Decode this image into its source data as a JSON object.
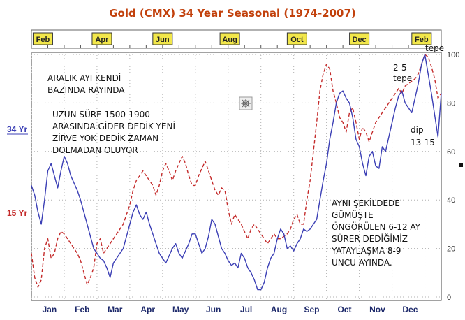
{
  "chart_data": {
    "type": "line",
    "title": "Gold (CMX) 34 Year Seasonal (1974-2007)",
    "top_months": [
      "Feb",
      "Apr",
      "Jun",
      "Aug",
      "Oct",
      "Dec",
      "Feb"
    ],
    "bottom_months": [
      "Jan",
      "Feb",
      "Mar",
      "Apr",
      "May",
      "Jun",
      "Jul",
      "Aug",
      "Sep",
      "Oct",
      "Nov",
      "Dec"
    ],
    "yticks": [
      "0",
      "20",
      "40",
      "60",
      "80",
      "100"
    ],
    "ylim": [
      0,
      100
    ],
    "xlim": [
      0,
      12.5
    ],
    "grid": true,
    "series": [
      {
        "name": "34 Yr",
        "color": "#3b3fb5",
        "style": "solid",
        "x": [
          0.0,
          0.1,
          0.2,
          0.3,
          0.4,
          0.5,
          0.6,
          0.7,
          0.8,
          0.9,
          1.0,
          1.1,
          1.2,
          1.3,
          1.4,
          1.5,
          1.6,
          1.7,
          1.8,
          1.9,
          2.0,
          2.1,
          2.2,
          2.3,
          2.4,
          2.5,
          2.6,
          2.7,
          2.8,
          2.9,
          3.0,
          3.1,
          3.2,
          3.3,
          3.4,
          3.5,
          3.6,
          3.7,
          3.8,
          3.9,
          4.0,
          4.1,
          4.2,
          4.3,
          4.4,
          4.5,
          4.6,
          4.7,
          4.8,
          4.9,
          5.0,
          5.1,
          5.2,
          5.3,
          5.4,
          5.5,
          5.6,
          5.7,
          5.8,
          5.9,
          6.0,
          6.1,
          6.2,
          6.3,
          6.4,
          6.5,
          6.6,
          6.7,
          6.8,
          6.9,
          7.0,
          7.1,
          7.2,
          7.3,
          7.4,
          7.5,
          7.6,
          7.7,
          7.8,
          7.9,
          8.0,
          8.1,
          8.2,
          8.3,
          8.4,
          8.5,
          8.6,
          8.7,
          8.8,
          8.9,
          9.0,
          9.1,
          9.2,
          9.3,
          9.4,
          9.5,
          9.6,
          9.7,
          9.8,
          9.9,
          10.0,
          10.1,
          10.2,
          10.3,
          10.4,
          10.5,
          10.6,
          10.7,
          10.8,
          10.9,
          11.0,
          11.1,
          11.2,
          11.3,
          11.4,
          11.5,
          11.6,
          11.7,
          11.8,
          11.9,
          12.0,
          12.1,
          12.2,
          12.3,
          12.4,
          12.5
        ],
        "values": [
          46,
          42,
          35,
          30,
          40,
          52,
          55,
          50,
          45,
          52,
          58,
          55,
          50,
          47,
          44,
          40,
          35,
          30,
          25,
          20,
          18,
          16,
          15,
          12,
          8,
          14,
          16,
          18,
          20,
          25,
          30,
          35,
          38,
          34,
          32,
          35,
          30,
          26,
          22,
          18,
          16,
          14,
          17,
          20,
          22,
          18,
          16,
          19,
          22,
          26,
          26,
          22,
          18,
          20,
          25,
          32,
          30,
          25,
          20,
          18,
          15,
          13,
          14,
          12,
          18,
          16,
          12,
          10,
          7,
          3,
          3,
          6,
          12,
          16,
          18,
          24,
          28,
          26,
          20,
          21,
          19,
          22,
          24,
          28,
          27,
          28,
          30,
          32,
          40,
          48,
          55,
          65,
          72,
          80,
          84,
          85,
          82,
          80,
          74,
          65,
          62,
          55,
          50,
          58,
          60,
          54,
          53,
          62,
          60,
          66,
          72,
          78,
          83,
          85,
          80,
          78,
          76,
          82,
          88,
          96,
          100,
          92,
          84,
          75,
          66,
          84
        ]
      },
      {
        "name": "15 Yr",
        "color": "#c42b2b",
        "style": "dashed",
        "x": [
          0.0,
          0.1,
          0.2,
          0.3,
          0.4,
          0.5,
          0.6,
          0.7,
          0.8,
          0.9,
          1.0,
          1.1,
          1.2,
          1.3,
          1.4,
          1.5,
          1.6,
          1.7,
          1.8,
          1.9,
          2.0,
          2.1,
          2.2,
          2.3,
          2.4,
          2.5,
          2.6,
          2.7,
          2.8,
          2.9,
          3.0,
          3.1,
          3.2,
          3.3,
          3.4,
          3.5,
          3.6,
          3.7,
          3.8,
          3.9,
          4.0,
          4.1,
          4.2,
          4.3,
          4.4,
          4.5,
          4.6,
          4.7,
          4.8,
          4.9,
          5.0,
          5.1,
          5.2,
          5.3,
          5.4,
          5.5,
          5.6,
          5.7,
          5.8,
          5.9,
          6.0,
          6.1,
          6.2,
          6.3,
          6.4,
          6.5,
          6.6,
          6.7,
          6.8,
          6.9,
          7.0,
          7.1,
          7.2,
          7.3,
          7.4,
          7.5,
          7.6,
          7.7,
          7.8,
          7.9,
          8.0,
          8.1,
          8.2,
          8.3,
          8.4,
          8.5,
          8.6,
          8.7,
          8.8,
          8.9,
          9.0,
          9.1,
          9.2,
          9.3,
          9.4,
          9.5,
          9.6,
          9.7,
          9.8,
          9.9,
          10.0,
          10.1,
          10.2,
          10.3,
          10.4,
          10.5,
          10.6,
          10.7,
          10.8,
          10.9,
          11.0,
          11.1,
          11.2,
          11.3,
          11.4,
          11.5,
          11.6,
          11.7,
          11.8,
          11.9,
          12.0,
          12.1,
          12.2,
          12.3,
          12.4,
          12.5
        ],
        "values": [
          18,
          8,
          4,
          7,
          20,
          24,
          16,
          18,
          24,
          27,
          26,
          24,
          22,
          20,
          18,
          15,
          10,
          5,
          8,
          12,
          22,
          24,
          18,
          20,
          22,
          24,
          26,
          28,
          30,
          34,
          38,
          44,
          48,
          50,
          52,
          50,
          48,
          46,
          42,
          46,
          52,
          55,
          52,
          48,
          52,
          55,
          58,
          55,
          50,
          46,
          46,
          50,
          53,
          56,
          52,
          48,
          44,
          42,
          45,
          44,
          36,
          30,
          34,
          32,
          30,
          27,
          24,
          28,
          30,
          28,
          26,
          24,
          22,
          24,
          26,
          24,
          24,
          25,
          26,
          28,
          32,
          34,
          30,
          30,
          40,
          48,
          60,
          72,
          85,
          92,
          96,
          94,
          85,
          80,
          74,
          72,
          68,
          76,
          78,
          72,
          65,
          70,
          68,
          64,
          68,
          72,
          74,
          76,
          78,
          80,
          82,
          84,
          86,
          84,
          87,
          88,
          89,
          90,
          92,
          96,
          100,
          99,
          95,
          90,
          82,
          84
        ]
      }
    ],
    "annotations": [
      {
        "id": "aralik",
        "lines": [
          "ARALIK AYI KENDİ",
          "BAZINDA RAYINDA"
        ]
      },
      {
        "id": "uzun",
        "lines": [
          "UZUN SÜRE 1500-1900",
          "ARASINDA GİDER DEDİK YENİ",
          "ZİRVE YOK DEDİK ZAMAN",
          "DOLMADAN OLUYOR"
        ]
      },
      {
        "id": "ayni",
        "lines": [
          "AYNI ŞEKİLDEDE",
          "GÜMÜŞTE",
          "ÖNGÖRÜLEN 6-12 AY",
          "SÜRER DEDİĞİMİZ",
          "YATAYLAŞMA 8-9",
          "UNCU AYINDA."
        ]
      },
      {
        "id": "tepe1",
        "lines": [
          "tepe"
        ]
      },
      {
        "id": "tepe25",
        "lines": [
          "2-5",
          "tepe"
        ]
      },
      {
        "id": "dip",
        "lines": [
          "dip",
          "13-15"
        ]
      }
    ],
    "colors": {
      "month_box_bg": "#f2e74a",
      "title": "#c2410c",
      "grid": "#b0b0b0"
    }
  }
}
